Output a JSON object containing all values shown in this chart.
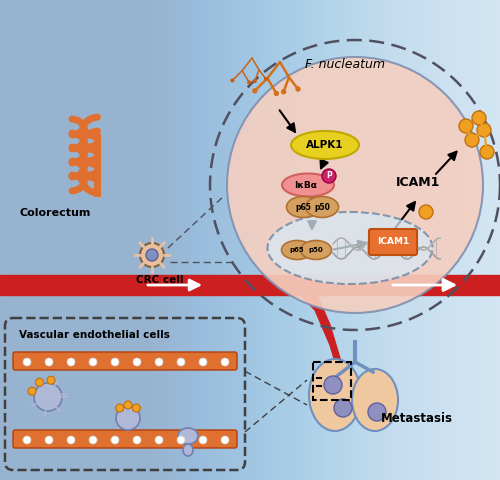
{
  "bg_color": "#c8dff0",
  "f_nucleatum_label": "F. nucleatum",
  "colorectum_label": "Colorectum",
  "crc_label": "CRC cell",
  "alpk1_label": "ALPK1",
  "ikba_label": "IκBα",
  "icam1_label": "ICAM1",
  "icam1_box_label": "ICAM1",
  "vascular_label": "Vascular endothelial cells",
  "metastasis_label": "Metastasis",
  "cell_circle_color": "#f5cfc0",
  "cell_circle_edge": "#8090b0",
  "alpk1_fill": "#e8d020",
  "alpk1_edge": "#c0a800",
  "ikba_fill": "#f09090",
  "ikba_edge": "#d06060",
  "p65p50_fill": "#d4a060",
  "p65p50_edge": "#b07030",
  "icam1_box_fill": "#e87030",
  "icam1_box_edge": "#c05010",
  "orange_ball": "#f0a020",
  "blood_vessel_color": "#cc2020",
  "lung_fill": "#f0c8a0",
  "lung_edge": "#7090c0"
}
